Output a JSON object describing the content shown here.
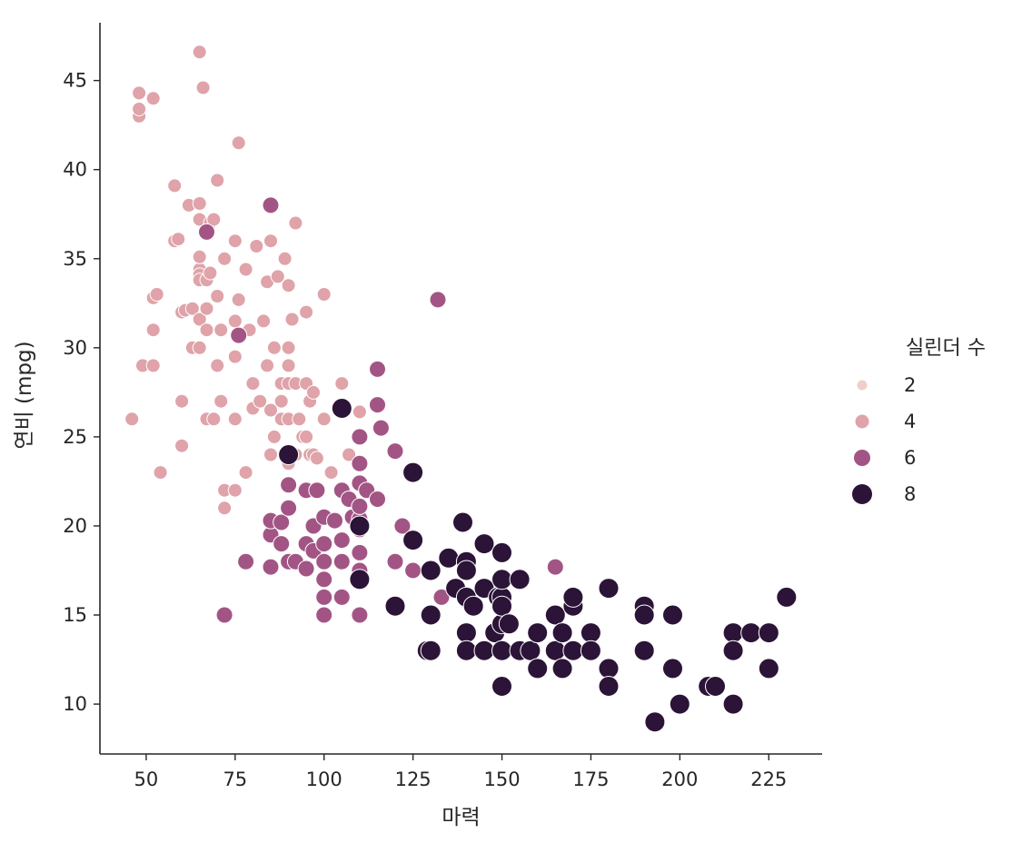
{
  "chart_data": {
    "type": "scatter",
    "xlabel": "마력",
    "ylabel": "연비 (mpg)",
    "xlim": [
      37,
      240
    ],
    "ylim": [
      7.2,
      48.5
    ],
    "x_ticks": [
      "50",
      "75",
      "100",
      "125",
      "150",
      "175",
      "200",
      "225"
    ],
    "y_ticks": [
      "10",
      "15",
      "20",
      "25",
      "30",
      "35",
      "40",
      "45"
    ],
    "grid": false,
    "legend": {
      "title": "실린더 수",
      "position": "right",
      "entries": [
        {
          "label": "2",
          "color": "#efcfc8",
          "size": 5.5
        },
        {
          "label": "4",
          "color": "#dfa3a9",
          "size": 7.5
        },
        {
          "label": "6",
          "color": "#a25585",
          "size": 9
        },
        {
          "label": "8",
          "color": "#2b1437",
          "size": 11
        }
      ]
    },
    "series": [
      {
        "cyl": 4,
        "color": "#dfa3a9",
        "points": [
          [
            46,
            26
          ],
          [
            48,
            43
          ],
          [
            48,
            43.4
          ],
          [
            48,
            44.3
          ],
          [
            49,
            29
          ],
          [
            52,
            44
          ],
          [
            52,
            29
          ],
          [
            52,
            32.8
          ],
          [
            52,
            31
          ],
          [
            53,
            33
          ],
          [
            54,
            23
          ],
          [
            58,
            36
          ],
          [
            58,
            39.1
          ],
          [
            59,
            36.1
          ],
          [
            60,
            32
          ],
          [
            60,
            24.5
          ],
          [
            60,
            27
          ],
          [
            61,
            32.1
          ],
          [
            62,
            38
          ],
          [
            63,
            30
          ],
          [
            63,
            32.2
          ],
          [
            65,
            46.6
          ],
          [
            65,
            34.4
          ],
          [
            65,
            38.1
          ],
          [
            65,
            37.2
          ],
          [
            65,
            31.6
          ],
          [
            65,
            35.1
          ],
          [
            65,
            34.1
          ],
          [
            65,
            33.8
          ],
          [
            65,
            30
          ],
          [
            66,
            44.6
          ],
          [
            67,
            26
          ],
          [
            67,
            32.2
          ],
          [
            67,
            31
          ],
          [
            67,
            33.8
          ],
          [
            68,
            37
          ],
          [
            68,
            34.2
          ],
          [
            69,
            37.2
          ],
          [
            69,
            26
          ],
          [
            70,
            39.4
          ],
          [
            70,
            29
          ],
          [
            70,
            32.9
          ],
          [
            71,
            31
          ],
          [
            71,
            27
          ],
          [
            72,
            22
          ],
          [
            72,
            21
          ],
          [
            72,
            35
          ],
          [
            75,
            36
          ],
          [
            75,
            31.5
          ],
          [
            75,
            26
          ],
          [
            75,
            22
          ],
          [
            75,
            29.5
          ],
          [
            76,
            41.5
          ],
          [
            76,
            32.7
          ],
          [
            78,
            34.4
          ],
          [
            78,
            23
          ],
          [
            79,
            31
          ],
          [
            80,
            28
          ],
          [
            80,
            26.6
          ],
          [
            81,
            35.7
          ],
          [
            82,
            27
          ],
          [
            83,
            31.5
          ],
          [
            84,
            33.7
          ],
          [
            84,
            29
          ],
          [
            85,
            36
          ],
          [
            85,
            24
          ],
          [
            85,
            26.5
          ],
          [
            86,
            30
          ],
          [
            86,
            25
          ],
          [
            87,
            34
          ],
          [
            88,
            27
          ],
          [
            88,
            28
          ],
          [
            88,
            26
          ],
          [
            89,
            35
          ],
          [
            90,
            33.5
          ],
          [
            90,
            30
          ],
          [
            90,
            29
          ],
          [
            90,
            28
          ],
          [
            90,
            26
          ],
          [
            90,
            23.5
          ],
          [
            91,
            31.6
          ],
          [
            92,
            37
          ],
          [
            92,
            28
          ],
          [
            92,
            24
          ],
          [
            93,
            26
          ],
          [
            94,
            25
          ],
          [
            95,
            32
          ],
          [
            95,
            28
          ],
          [
            95,
            25
          ],
          [
            96,
            27
          ],
          [
            96,
            24
          ],
          [
            97,
            24
          ],
          [
            97,
            27.5
          ],
          [
            98,
            23.8
          ],
          [
            100,
            33
          ],
          [
            100,
            26
          ],
          [
            102,
            23
          ],
          [
            105,
            28
          ],
          [
            107,
            24
          ],
          [
            110,
            26.4
          ]
        ]
      },
      {
        "cyl": 6,
        "color": "#a25585",
        "points": [
          [
            67,
            36.5
          ],
          [
            72,
            15
          ],
          [
            76,
            30.7
          ],
          [
            78,
            18
          ],
          [
            85,
            38
          ],
          [
            85,
            17.7
          ],
          [
            85,
            19.5
          ],
          [
            85,
            20.3
          ],
          [
            88,
            20.2
          ],
          [
            88,
            19
          ],
          [
            90,
            18
          ],
          [
            90,
            21
          ],
          [
            90,
            22.3
          ],
          [
            92,
            18
          ],
          [
            95,
            19
          ],
          [
            95,
            17.6
          ],
          [
            95,
            22
          ],
          [
            97,
            18.6
          ],
          [
            97,
            20
          ],
          [
            98,
            22
          ],
          [
            100,
            18
          ],
          [
            100,
            19
          ],
          [
            100,
            20.5
          ],
          [
            100,
            15
          ],
          [
            100,
            16
          ],
          [
            100,
            17
          ],
          [
            103,
            20.3
          ],
          [
            105,
            16
          ],
          [
            105,
            18
          ],
          [
            105,
            19.2
          ],
          [
            105,
            22
          ],
          [
            107,
            21.5
          ],
          [
            108,
            20.5
          ],
          [
            110,
            15
          ],
          [
            110,
            17.5
          ],
          [
            110,
            18.5
          ],
          [
            110,
            19.8
          ],
          [
            110,
            20.4
          ],
          [
            110,
            21.1
          ],
          [
            110,
            22.4
          ],
          [
            110,
            23.5
          ],
          [
            110,
            25
          ],
          [
            112,
            22
          ],
          [
            115,
            28.8
          ],
          [
            115,
            26.8
          ],
          [
            115,
            21.5
          ],
          [
            116,
            25.5
          ],
          [
            120,
            24.2
          ],
          [
            120,
            18
          ],
          [
            122,
            20
          ],
          [
            125,
            17.5
          ],
          [
            132,
            32.7
          ],
          [
            133,
            16
          ],
          [
            165,
            17.7
          ]
        ]
      },
      {
        "cyl": 8,
        "color": "#2b1437",
        "points": [
          [
            90,
            24
          ],
          [
            105,
            26.6
          ],
          [
            110,
            17
          ],
          [
            110,
            20
          ],
          [
            120,
            15.5
          ],
          [
            125,
            23
          ],
          [
            125,
            19.2
          ],
          [
            129,
            13
          ],
          [
            130,
            17.5
          ],
          [
            130,
            15
          ],
          [
            130,
            13
          ],
          [
            135,
            18.2
          ],
          [
            137,
            16.5
          ],
          [
            139,
            20.2
          ],
          [
            140,
            14
          ],
          [
            140,
            18
          ],
          [
            140,
            16
          ],
          [
            140,
            13
          ],
          [
            140,
            17.5
          ],
          [
            142,
            15.5
          ],
          [
            145,
            13
          ],
          [
            145,
            16.5
          ],
          [
            145,
            19
          ],
          [
            148,
            14
          ],
          [
            149,
            16
          ],
          [
            150,
            13
          ],
          [
            150,
            11
          ],
          [
            150,
            14.5
          ],
          [
            150,
            16
          ],
          [
            150,
            17
          ],
          [
            150,
            18.5
          ],
          [
            150,
            15.5
          ],
          [
            152,
            14.5
          ],
          [
            155,
            17
          ],
          [
            155,
            13
          ],
          [
            158,
            13
          ],
          [
            160,
            14
          ],
          [
            160,
            12
          ],
          [
            165,
            13
          ],
          [
            165,
            15
          ],
          [
            167,
            14
          ],
          [
            167,
            12
          ],
          [
            170,
            13
          ],
          [
            170,
            15.5
          ],
          [
            170,
            16
          ],
          [
            175,
            14
          ],
          [
            175,
            13
          ],
          [
            180,
            16.5
          ],
          [
            180,
            12
          ],
          [
            180,
            11
          ],
          [
            190,
            15.5
          ],
          [
            190,
            15
          ],
          [
            190,
            13
          ],
          [
            193,
            9
          ],
          [
            198,
            15
          ],
          [
            198,
            12
          ],
          [
            200,
            10
          ],
          [
            208,
            11
          ],
          [
            210,
            11
          ],
          [
            215,
            14
          ],
          [
            215,
            10
          ],
          [
            215,
            13
          ],
          [
            220,
            14
          ],
          [
            225,
            12
          ],
          [
            225,
            14
          ],
          [
            230,
            16
          ]
        ]
      }
    ]
  }
}
